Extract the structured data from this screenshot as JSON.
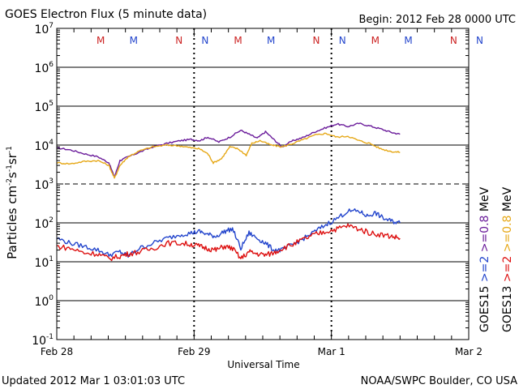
{
  "chart_data": {
    "type": "line",
    "title": "GOES Electron Flux (5 minute data)",
    "begin_label": "Begin: 2012 Feb 28 0000 UTC",
    "xlabel": "Universal Time",
    "ylabel_parts": {
      "main": "Particles cm",
      "exp1": "-2",
      "s": "s",
      "exp2": "-1",
      "sr": "sr",
      "exp3": "-1"
    },
    "footer_left": "Updated 2012 Mar  1 03:01:03 UTC",
    "footer_right": "NOAA/SWPC Boulder, CO USA",
    "x_range_days": [
      0,
      3
    ],
    "x_ticks": [
      {
        "day": 0,
        "label": "Feb 28"
      },
      {
        "day": 1,
        "label": "Feb 29"
      },
      {
        "day": 2,
        "label": "Mar 1"
      },
      {
        "day": 3,
        "label": "Mar 2"
      }
    ],
    "y_range_log10": [
      -1,
      7
    ],
    "y_ticks": [
      {
        "exp": 7,
        "base": "10",
        "sup": "7"
      },
      {
        "exp": 6,
        "base": "10",
        "sup": "6"
      },
      {
        "exp": 5,
        "base": "10",
        "sup": "5"
      },
      {
        "exp": 4,
        "base": "10",
        "sup": "4"
      },
      {
        "exp": 3,
        "base": "10",
        "sup": "3"
      },
      {
        "exp": 2,
        "base": "10",
        "sup": "2"
      },
      {
        "exp": 1,
        "base": "10",
        "sup": "1"
      },
      {
        "exp": 0,
        "base": "10",
        "sup": "0"
      },
      {
        "exp": -1,
        "base": "10",
        "sup": "-1"
      }
    ],
    "solid_gridlines_log10": [
      6,
      5,
      4,
      2,
      1,
      0
    ],
    "dashed_gridlines_log10": [
      3
    ],
    "mn_markers": [
      {
        "day": 0.32,
        "label": "M",
        "color": "#cc2222"
      },
      {
        "day": 0.56,
        "label": "M",
        "color": "#2244cc"
      },
      {
        "day": 0.89,
        "label": "N",
        "color": "#cc2222"
      },
      {
        "day": 1.08,
        "label": "N",
        "color": "#2244cc"
      },
      {
        "day": 1.32,
        "label": "M",
        "color": "#cc2222"
      },
      {
        "day": 1.56,
        "label": "M",
        "color": "#2244cc"
      },
      {
        "day": 1.89,
        "label": "N",
        "color": "#cc2222"
      },
      {
        "day": 2.08,
        "label": "N",
        "color": "#2244cc"
      },
      {
        "day": 2.32,
        "label": "M",
        "color": "#cc2222"
      },
      {
        "day": 2.56,
        "label": "M",
        "color": "#2244cc"
      },
      {
        "day": 2.89,
        "label": "N",
        "color": "#cc2222"
      },
      {
        "day": 3.08,
        "label": "N",
        "color": "#2244cc"
      }
    ],
    "legend": {
      "col1": [
        {
          "text": "GOES15",
          "color": "#000000"
        },
        {
          "text": ">=2",
          "color": "#2244cc"
        },
        {
          "text": ">=0.8",
          "color": "#6a1b9a"
        },
        {
          "text": "MeV",
          "color": "#000000"
        }
      ],
      "col2": [
        {
          "text": "GOES13",
          "color": "#000000"
        },
        {
          "text": ">=2",
          "color": "#dd1111"
        },
        {
          "text": ">=0.8",
          "color": "#e6a817"
        },
        {
          "text": "MeV",
          "color": "#000000"
        }
      ]
    },
    "series": [
      {
        "name": "GOES15 >=0.8 MeV",
        "color": "#6a1b9a",
        "points": [
          [
            0,
            8500
          ],
          [
            0.1,
            7500
          ],
          [
            0.2,
            6000
          ],
          [
            0.3,
            5000
          ],
          [
            0.38,
            3500
          ],
          [
            0.42,
            1500
          ],
          [
            0.46,
            4000
          ],
          [
            0.52,
            5000
          ],
          [
            0.6,
            6500
          ],
          [
            0.7,
            9000
          ],
          [
            0.8,
            11000
          ],
          [
            0.9,
            13000
          ],
          [
            0.98,
            14000
          ],
          [
            1.04,
            13000
          ],
          [
            1.1,
            16000
          ],
          [
            1.18,
            12000
          ],
          [
            1.26,
            16000
          ],
          [
            1.34,
            24000
          ],
          [
            1.4,
            19000
          ],
          [
            1.46,
            15000
          ],
          [
            1.52,
            22000
          ],
          [
            1.58,
            14000
          ],
          [
            1.64,
            9000
          ],
          [
            1.72,
            13000
          ],
          [
            1.8,
            16000
          ],
          [
            1.88,
            22000
          ],
          [
            1.96,
            28000
          ],
          [
            2.04,
            35000
          ],
          [
            2.12,
            30000
          ],
          [
            2.2,
            36000
          ],
          [
            2.28,
            31000
          ],
          [
            2.36,
            26000
          ],
          [
            2.44,
            21000
          ],
          [
            2.5,
            19000
          ]
        ]
      },
      {
        "name": "GOES13 >=0.8 MeV",
        "color": "#e6a817",
        "points": [
          [
            0,
            3500
          ],
          [
            0.1,
            3300
          ],
          [
            0.2,
            3800
          ],
          [
            0.3,
            4000
          ],
          [
            0.38,
            3000
          ],
          [
            0.42,
            1400
          ],
          [
            0.46,
            3000
          ],
          [
            0.52,
            5000
          ],
          [
            0.6,
            7000
          ],
          [
            0.7,
            9000
          ],
          [
            0.8,
            10000
          ],
          [
            0.9,
            9500
          ],
          [
            0.98,
            8500
          ],
          [
            1.04,
            8000
          ],
          [
            1.1,
            6000
          ],
          [
            1.14,
            3500
          ],
          [
            1.2,
            4500
          ],
          [
            1.26,
            9000
          ],
          [
            1.32,
            8000
          ],
          [
            1.38,
            5500
          ],
          [
            1.42,
            11000
          ],
          [
            1.48,
            13000
          ],
          [
            1.56,
            10000
          ],
          [
            1.64,
            9000
          ],
          [
            1.72,
            11000
          ],
          [
            1.8,
            14000
          ],
          [
            1.88,
            18000
          ],
          [
            1.96,
            20000
          ],
          [
            2.04,
            16000
          ],
          [
            2.12,
            17000
          ],
          [
            2.2,
            13000
          ],
          [
            2.28,
            11000
          ],
          [
            2.36,
            8000
          ],
          [
            2.44,
            6800
          ],
          [
            2.5,
            6500
          ]
        ]
      },
      {
        "name": "GOES15 >=2 MeV",
        "color": "#2244cc",
        "points": [
          [
            0,
            40
          ],
          [
            0.1,
            30
          ],
          [
            0.2,
            25
          ],
          [
            0.3,
            20
          ],
          [
            0.38,
            15
          ],
          [
            0.46,
            18
          ],
          [
            0.52,
            14
          ],
          [
            0.6,
            22
          ],
          [
            0.7,
            30
          ],
          [
            0.8,
            40
          ],
          [
            0.9,
            50
          ],
          [
            0.98,
            55
          ],
          [
            1.04,
            60
          ],
          [
            1.1,
            50
          ],
          [
            1.16,
            45
          ],
          [
            1.22,
            60
          ],
          [
            1.28,
            70
          ],
          [
            1.34,
            22
          ],
          [
            1.4,
            55
          ],
          [
            1.46,
            40
          ],
          [
            1.52,
            30
          ],
          [
            1.58,
            20
          ],
          [
            1.64,
            20
          ],
          [
            1.72,
            28
          ],
          [
            1.8,
            40
          ],
          [
            1.88,
            60
          ],
          [
            1.96,
            90
          ],
          [
            2.04,
            130
          ],
          [
            2.12,
            200
          ],
          [
            2.2,
            200
          ],
          [
            2.26,
            150
          ],
          [
            2.32,
            180
          ],
          [
            2.38,
            130
          ],
          [
            2.44,
            110
          ],
          [
            2.5,
            100
          ]
        ]
      },
      {
        "name": "GOES13 >=2 MeV",
        "color": "#dd1111",
        "points": [
          [
            0,
            25
          ],
          [
            0.1,
            22
          ],
          [
            0.2,
            17
          ],
          [
            0.3,
            16
          ],
          [
            0.38,
            12
          ],
          [
            0.46,
            14
          ],
          [
            0.52,
            16
          ],
          [
            0.6,
            18
          ],
          [
            0.7,
            22
          ],
          [
            0.8,
            30
          ],
          [
            0.9,
            30
          ],
          [
            0.98,
            28
          ],
          [
            1.04,
            25
          ],
          [
            1.1,
            22
          ],
          [
            1.16,
            20
          ],
          [
            1.22,
            25
          ],
          [
            1.28,
            22
          ],
          [
            1.34,
            12
          ],
          [
            1.4,
            18
          ],
          [
            1.46,
            16
          ],
          [
            1.52,
            15
          ],
          [
            1.58,
            17
          ],
          [
            1.64,
            22
          ],
          [
            1.72,
            28
          ],
          [
            1.8,
            38
          ],
          [
            1.88,
            50
          ],
          [
            1.96,
            60
          ],
          [
            2.04,
            70
          ],
          [
            2.12,
            85
          ],
          [
            2.2,
            70
          ],
          [
            2.28,
            55
          ],
          [
            2.36,
            50
          ],
          [
            2.44,
            45
          ],
          [
            2.5,
            40
          ]
        ]
      }
    ]
  }
}
